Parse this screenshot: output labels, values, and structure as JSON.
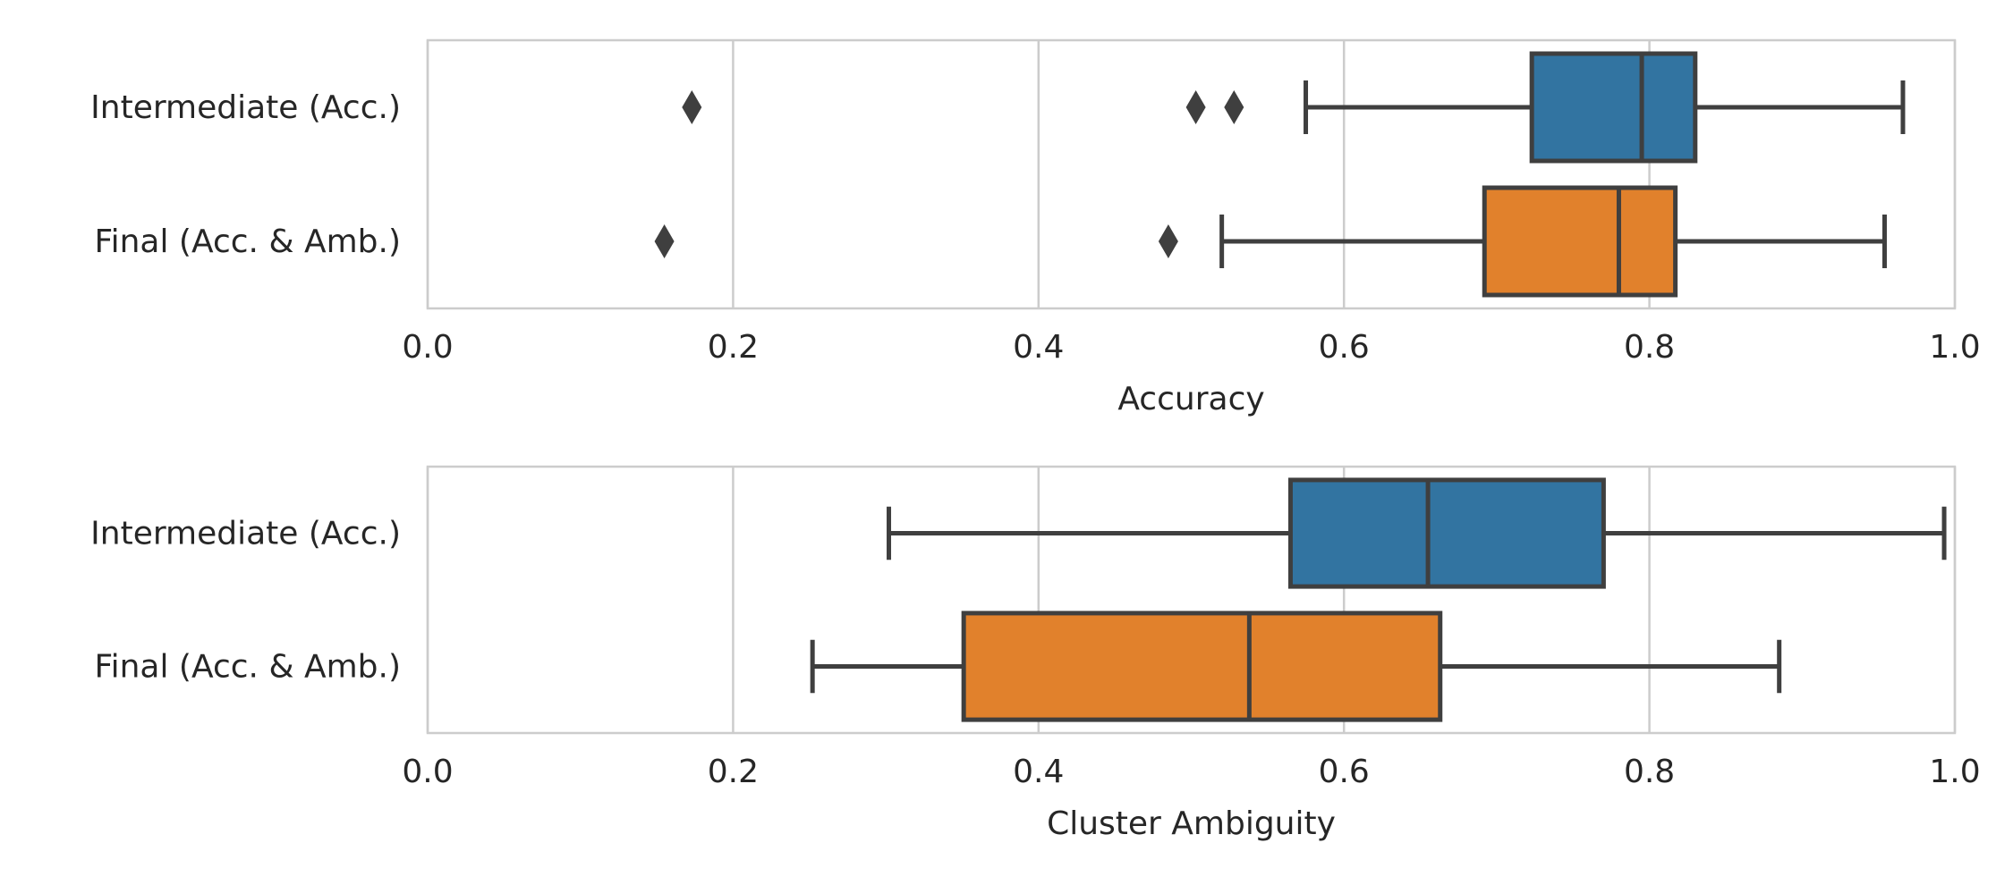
{
  "chart_data": [
    {
      "type": "boxplot",
      "orientation": "horizontal",
      "xlabel": "Accuracy",
      "xlim": [
        0.0,
        1.0
      ],
      "xticks": [
        "0.0",
        "0.2",
        "0.4",
        "0.6",
        "0.8",
        "1.0"
      ],
      "grid": "vertical",
      "categories": [
        "Intermediate (Acc.)",
        "Final (Acc. & Amb.)"
      ],
      "series": [
        {
          "name": "Intermediate (Acc.)",
          "color": "#3274a1",
          "whisker_low": 0.575,
          "q1": 0.723,
          "median": 0.795,
          "q3": 0.83,
          "whisker_high": 0.966,
          "outliers": [
            0.173,
            0.503,
            0.528
          ]
        },
        {
          "name": "Final (Acc. & Amb.)",
          "color": "#e1812c",
          "whisker_low": 0.52,
          "q1": 0.692,
          "median": 0.78,
          "q3": 0.817,
          "whisker_high": 0.954,
          "outliers": [
            0.155,
            0.485
          ]
        }
      ]
    },
    {
      "type": "boxplot",
      "orientation": "horizontal",
      "xlabel": "Cluster Ambiguity",
      "xlim": [
        0.0,
        1.0
      ],
      "xticks": [
        "0.0",
        "0.2",
        "0.4",
        "0.6",
        "0.8",
        "1.0"
      ],
      "grid": "vertical",
      "categories": [
        "Intermediate (Acc.)",
        "Final (Acc. & Amb.)"
      ],
      "series": [
        {
          "name": "Intermediate (Acc.)",
          "color": "#3274a1",
          "whisker_low": 0.302,
          "q1": 0.565,
          "median": 0.655,
          "q3": 0.77,
          "whisker_high": 0.993,
          "outliers": []
        },
        {
          "name": "Final (Acc. & Amb.)",
          "color": "#e1812c",
          "whisker_low": 0.252,
          "q1": 0.351,
          "median": 0.538,
          "q3": 0.663,
          "whisker_high": 0.885,
          "outliers": []
        }
      ]
    }
  ]
}
